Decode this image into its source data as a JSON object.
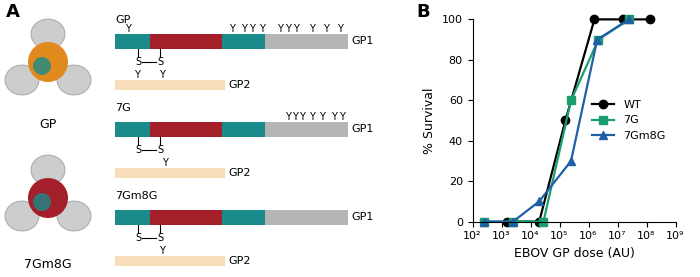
{
  "diagram": {
    "panel_label": "A",
    "structures": [
      "GP",
      "7Gm8G"
    ],
    "glycan_symbol": "Y",
    "disulfide_symbol": "S",
    "subunits": [
      "GP1",
      "GP2"
    ],
    "constructs": [
      {
        "name": "GP"
      },
      {
        "name": "7G"
      },
      {
        "name": "7Gm8G"
      }
    ]
  },
  "chart_data": {
    "type": "line",
    "panel_label": "B",
    "x_label": "EBOV GP dose (AU)",
    "y_label": "% Survival",
    "log": "x",
    "legend": "center right",
    "xlim": [
      100,
      1000000000
    ],
    "xticks": [
      {
        "value": 100,
        "label": "10²"
      },
      {
        "value": 1000,
        "label": "10³"
      },
      {
        "value": 10000,
        "label": "10⁴"
      },
      {
        "value": 100000,
        "label": "10⁵"
      },
      {
        "value": 1000000,
        "label": "10⁶"
      },
      {
        "value": 10000000,
        "label": "10⁷"
      },
      {
        "value": 100000000,
        "label": "10⁸"
      },
      {
        "value": 1000000000,
        "label": "10⁹"
      }
    ],
    "ylim": [
      0,
      100
    ],
    "yticks": [
      0,
      20,
      40,
      60,
      80,
      100
    ],
    "series": [
      {
        "name": "WT",
        "color": "#000000",
        "marker": "circle",
        "x": [
          1600,
          20000,
          160000,
          1600000,
          16000000,
          130000000
        ],
        "values": [
          0,
          0,
          50,
          100,
          100,
          100
        ]
      },
      {
        "name": "7G",
        "color": "#1a9e6e",
        "marker": "square",
        "x": [
          250,
          2500,
          28000,
          250000,
          2200000,
          25000000
        ],
        "values": [
          0,
          0,
          0,
          60,
          90,
          100
        ]
      },
      {
        "name": "7Gm8G",
        "color": "#1f5fa8",
        "marker": "triangle",
        "x": [
          250,
          2500,
          20000,
          250000,
          2000000,
          25000000
        ],
        "values": [
          0,
          0,
          10,
          30,
          90,
          100
        ]
      }
    ]
  }
}
